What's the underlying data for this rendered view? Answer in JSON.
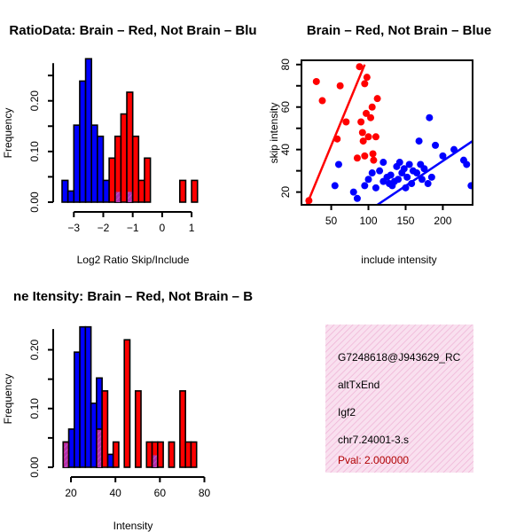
{
  "chart_data": [
    {
      "type": "histogram",
      "title": "RatioData: Brain – Red, Not Brain – Blu",
      "xlabel": "Log2 Ratio Skip/Include",
      "ylabel": "Frequency",
      "xlim": [
        -3.4,
        1.6
      ],
      "ylim": [
        0,
        0.28
      ],
      "xticks": [
        -3,
        -2,
        -1,
        0,
        1
      ],
      "xtick_labels": [
        "−3",
        "−2",
        "−1",
        "0",
        "1"
      ],
      "yticks": [
        0.0,
        0.1,
        0.2
      ],
      "ytick_labels": [
        "0.00",
        "0.10",
        "0.20"
      ],
      "bin_width": 0.2,
      "series": [
        {
          "name": "Not Brain",
          "color": "#0000ff",
          "bins": [
            {
              "x": -3.4,
              "value": 0.043
            },
            {
              "x": -3.2,
              "value": 0.022
            },
            {
              "x": -3.0,
              "value": 0.152
            },
            {
              "x": -2.8,
              "value": 0.239
            },
            {
              "x": -2.6,
              "value": 0.283
            },
            {
              "x": -2.4,
              "value": 0.152
            },
            {
              "x": -2.2,
              "value": 0.13
            },
            {
              "x": -2.0,
              "value": 0.043
            },
            {
              "x": -1.6,
              "value": 0.022
            },
            {
              "x": -1.2,
              "value": 0.022
            }
          ]
        },
        {
          "name": "Brain",
          "color": "#ff0000",
          "bins": [
            {
              "x": -1.8,
              "value": 0.087
            },
            {
              "x": -1.6,
              "value": 0.13
            },
            {
              "x": -1.4,
              "value": 0.174
            },
            {
              "x": -1.2,
              "value": 0.217
            },
            {
              "x": -1.0,
              "value": 0.13
            },
            {
              "x": -0.8,
              "value": 0.043
            },
            {
              "x": -0.6,
              "value": 0.087
            },
            {
              "x": 0.6,
              "value": 0.043
            },
            {
              "x": 1.0,
              "value": 0.043
            }
          ]
        }
      ]
    },
    {
      "type": "scatter",
      "title": "Brain – Red, Not Brain – Blue",
      "xlabel": "include intensity",
      "ylabel": "skip intensity",
      "xlim": [
        10,
        240
      ],
      "ylim": [
        14,
        82
      ],
      "xticks": [
        50,
        100,
        150,
        200
      ],
      "yticks": [
        20,
        40,
        60,
        80
      ],
      "series": [
        {
          "name": "Brain",
          "color": "#ff0000",
          "points": [
            [
              20,
              16
            ],
            [
              30,
              72
            ],
            [
              38,
              63
            ],
            [
              58,
              45
            ],
            [
              62,
              70
            ],
            [
              70,
              53
            ],
            [
              88,
              79
            ],
            [
              90,
              53
            ],
            [
              92,
              48
            ],
            [
              93,
              44
            ],
            [
              95,
              71
            ],
            [
              98,
              74
            ],
            [
              97,
              57
            ],
            [
              100,
              46
            ],
            [
              103,
              55
            ],
            [
              105,
              60
            ],
            [
              106,
              38
            ],
            [
              107,
              35
            ],
            [
              110,
              46
            ],
            [
              112,
              64
            ],
            [
              95,
              37
            ],
            [
              85,
              36
            ]
          ],
          "trend": [
            [
              10,
              8
            ],
            [
              95,
              80
            ]
          ]
        },
        {
          "name": "Not Brain",
          "color": "#0000ff",
          "points": [
            [
              55,
              23
            ],
            [
              60,
              33
            ],
            [
              80,
              20
            ],
            [
              85,
              17
            ],
            [
              95,
              23
            ],
            [
              100,
              26
            ],
            [
              105,
              29
            ],
            [
              110,
              22
            ],
            [
              115,
              30
            ],
            [
              120,
              25
            ],
            [
              125,
              27
            ],
            [
              128,
              24
            ],
            [
              130,
              28
            ],
            [
              132,
              23
            ],
            [
              135,
              25
            ],
            [
              138,
              32
            ],
            [
              140,
              26
            ],
            [
              142,
              34
            ],
            [
              145,
              29
            ],
            [
              148,
              31
            ],
            [
              150,
              22
            ],
            [
              152,
              27
            ],
            [
              155,
              33
            ],
            [
              158,
              24
            ],
            [
              160,
              30
            ],
            [
              165,
              29
            ],
            [
              168,
              44
            ],
            [
              170,
              33
            ],
            [
              172,
              26
            ],
            [
              175,
              31
            ],
            [
              180,
              24
            ],
            [
              182,
              55
            ],
            [
              185,
              27
            ],
            [
              190,
              42
            ],
            [
              200,
              37
            ],
            [
              215,
              40
            ],
            [
              228,
              35
            ],
            [
              232,
              33
            ],
            [
              238,
              23
            ],
            [
              120,
              34
            ]
          ],
          "trend": [
            [
              95,
              10
            ],
            [
              240,
              44
            ]
          ]
        }
      ]
    },
    {
      "type": "histogram",
      "title": "ne Itensity: Brain – Red, Not Brain – B",
      "xlabel": "Intensity",
      "ylabel": "Frequency",
      "xlim": [
        16,
        81
      ],
      "ylim": [
        0,
        0.24
      ],
      "xticks": [
        20,
        40,
        60,
        80
      ],
      "yticks": [
        0.0,
        0.1,
        0.2
      ],
      "ytick_labels": [
        "0.00",
        "0.10",
        "0.20"
      ],
      "bin_width": 2.5,
      "series": [
        {
          "name": "Not Brain",
          "color": "#0000ff",
          "bins": [
            {
              "x": 16.5,
              "value": 0.043
            },
            {
              "x": 19,
              "value": 0.065
            },
            {
              "x": 21.5,
              "value": 0.196
            },
            {
              "x": 24,
              "value": 0.239
            },
            {
              "x": 26.5,
              "value": 0.239
            },
            {
              "x": 29,
              "value": 0.109
            },
            {
              "x": 31.5,
              "value": 0.152
            },
            {
              "x": 36.5,
              "value": 0.022
            },
            {
              "x": 56.5,
              "value": 0.022
            }
          ]
        },
        {
          "name": "Brain",
          "color": "#ff0000",
          "bins": [
            {
              "x": 16.5,
              "value": 0.043
            },
            {
              "x": 31.5,
              "value": 0.065
            },
            {
              "x": 34,
              "value": 0.13
            },
            {
              "x": 39,
              "value": 0.043
            },
            {
              "x": 44,
              "value": 0.217
            },
            {
              "x": 49,
              "value": 0.13
            },
            {
              "x": 54,
              "value": 0.043
            },
            {
              "x": 56.5,
              "value": 0.043
            },
            {
              "x": 59,
              "value": 0.043
            },
            {
              "x": 64,
              "value": 0.043
            },
            {
              "x": 69,
              "value": 0.13
            },
            {
              "x": 71.5,
              "value": 0.043
            },
            {
              "x": 74,
              "value": 0.043
            }
          ]
        }
      ],
      "overlap_color": "#a020a0"
    }
  ],
  "info_panel": {
    "lines": [
      "G7248618@J943629_RC",
      "altTxEnd",
      "Igf2",
      "chr7.24001-3.s"
    ],
    "pval": "Pval: 2.000000",
    "background": "#f8d8ec",
    "hatch_color": "#f0b8d8"
  }
}
